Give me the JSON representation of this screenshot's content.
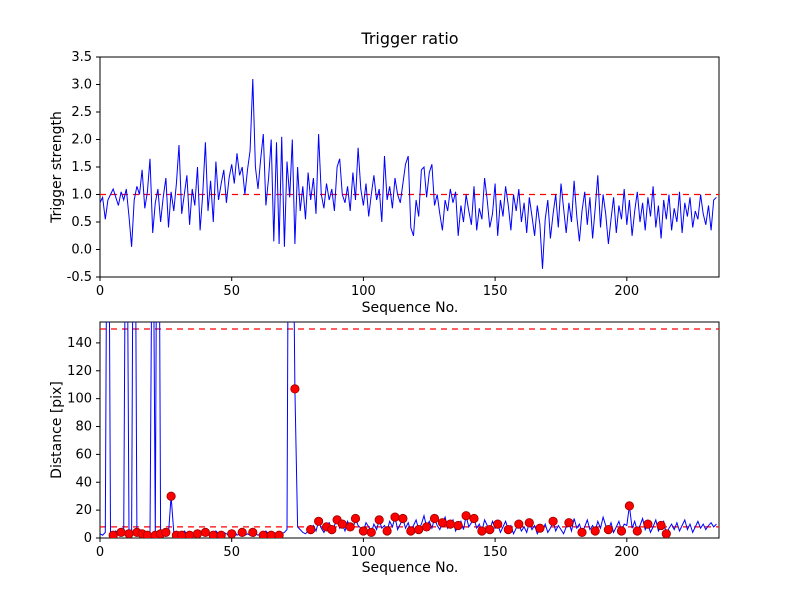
{
  "figure": {
    "background": "#ffffff",
    "line_color": "#0000ff",
    "threshold_color": "#ff0000",
    "marker_face": "#ff0000",
    "marker_edge": "#990000",
    "frame_color": "#000000"
  },
  "chart_data": [
    {
      "type": "line",
      "title": "Trigger ratio",
      "xlabel": "Sequence No.",
      "ylabel": "Trigger strength",
      "xlim": [
        0,
        235
      ],
      "ylim": [
        -0.5,
        3.5
      ],
      "xticks": [
        0,
        50,
        100,
        150,
        200
      ],
      "xtick_labels": [
        "0",
        "50",
        "100",
        "150",
        "200"
      ],
      "yticks": [
        -0.5,
        0.0,
        0.5,
        1.0,
        1.5,
        2.0,
        2.5,
        3.0,
        3.5
      ],
      "ytick_labels": [
        "-0.5",
        "0.0",
        "0.5",
        "1.0",
        "1.5",
        "2.0",
        "2.5",
        "3.0",
        "3.5"
      ],
      "thresholds": [
        1.0
      ],
      "grid": false,
      "legend": "none",
      "series": [
        {
          "values": [
            0.85,
            0.95,
            0.55,
            0.9,
            1.0,
            1.1,
            0.95,
            0.8,
            1.05,
            0.9,
            1.1,
            0.6,
            0.05,
            0.9,
            1.15,
            1.0,
            1.45,
            0.75,
            1.05,
            1.65,
            0.3,
            0.85,
            1.1,
            0.5,
            0.95,
            1.3,
            0.4,
            1.05,
            0.7,
            1.2,
            1.9,
            0.65,
            1.0,
            1.35,
            0.45,
            1.1,
            0.8,
            1.5,
            0.35,
            1.0,
            1.95,
            0.7,
            1.25,
            0.5,
            1.6,
            0.9,
            1.2,
            1.45,
            0.85,
            1.3,
            1.55,
            1.2,
            1.75,
            1.35,
            1.5,
            1.0,
            1.45,
            1.8,
            3.1,
            1.5,
            1.1,
            1.65,
            2.1,
            0.8,
            1.3,
            2.0,
            0.15,
            1.95,
            0.1,
            2.05,
            0.05,
            1.6,
            0.95,
            2.0,
            0.1,
            1.5,
            0.7,
            1.15,
            0.55,
            1.4,
            0.9,
            1.3,
            0.65,
            2.1,
            1.0,
            0.75,
            1.2,
            0.9,
            1.1,
            0.7,
            1.5,
            1.65,
            1.0,
            0.85,
            1.15,
            0.7,
            1.4,
            0.9,
            1.85,
            1.1,
            0.8,
            1.2,
            0.6,
            1.0,
            1.35,
            0.9,
            1.1,
            0.5,
            1.7,
            0.9,
            1.15,
            0.75,
            1.3,
            1.0,
            0.85,
            1.2,
            1.55,
            1.7,
            0.4,
            0.25,
            0.9,
            0.6,
            1.45,
            1.5,
            0.95,
            1.4,
            1.55,
            0.8,
            1.0,
            0.65,
            0.35,
            0.9,
            0.7,
            1.1,
            0.85,
            1.05,
            0.25,
            0.8,
            0.5,
            1.0,
            0.7,
            0.45,
            1.15,
            0.35,
            0.75,
            0.55,
            1.3,
            0.9,
            0.4,
            0.65,
            1.2,
            0.25,
            0.9,
            0.6,
            1.15,
            0.8,
            0.35,
            1.0,
            0.7,
            1.1,
            0.5,
            0.85,
            0.3,
            0.95,
            0.6,
            0.25,
            0.8,
            0.45,
            -0.35,
            0.55,
            0.9,
            0.2,
            0.65,
            1.0,
            0.4,
            1.2,
            0.75,
            0.3,
            0.85,
            0.5,
            1.25,
            0.6,
            0.15,
            0.7,
            1.05,
            0.45,
            0.95,
            0.2,
            0.75,
            1.35,
            0.4,
            1.0,
            0.65,
            0.1,
            0.55,
            0.95,
            0.3,
            0.8,
            0.55,
            1.1,
            0.45,
            0.9,
            0.25,
            0.7,
            1.05,
            0.5,
            0.85,
            0.35,
            0.95,
            0.6,
            1.15,
            0.4,
            0.8,
            0.2,
            0.9,
            0.55,
            1.0,
            0.35,
            0.75,
            0.5,
            1.05,
            0.3,
            0.85,
            0.6,
            0.95,
            0.4,
            0.7,
            0.55,
            1.0,
            0.65,
            0.45,
            0.8,
            0.35,
            0.9,
            0.95
          ]
        }
      ],
      "marker_indices": []
    },
    {
      "type": "line",
      "title": "",
      "xlabel": "Sequence No.",
      "ylabel": "Distance [pix]",
      "xlim": [
        0,
        235
      ],
      "ylim": [
        0,
        155
      ],
      "xticks": [
        0,
        50,
        100,
        150,
        200
      ],
      "xtick_labels": [
        "0",
        "50",
        "100",
        "150",
        "200"
      ],
      "yticks": [
        0,
        20,
        40,
        60,
        80,
        100,
        120,
        140
      ],
      "ytick_labels": [
        "0",
        "20",
        "40",
        "60",
        "80",
        "100",
        "120",
        "140"
      ],
      "thresholds": [
        150,
        8
      ],
      "grid": false,
      "legend": "none",
      "series": [
        {
          "values": [
            3,
            2,
            4,
            400,
            3,
            2,
            5,
            3,
            4,
            2,
            350,
            3,
            2,
            400,
            4,
            2,
            3,
            5,
            2,
            3,
            300,
            2,
            450,
            3,
            2,
            4,
            3,
            30,
            4,
            2,
            3,
            2,
            5,
            3,
            2,
            4,
            2,
            3,
            5,
            2,
            4,
            2,
            3,
            2,
            5,
            3,
            2,
            4,
            3,
            2,
            3,
            5,
            2,
            3,
            4,
            2,
            3,
            2,
            4,
            3,
            2,
            3,
            2,
            5,
            3,
            2,
            4,
            3,
            2,
            3,
            4,
            6,
            480,
            300,
            107,
            8,
            6,
            4,
            3,
            5,
            6,
            9,
            5,
            12,
            7,
            4,
            8,
            11,
            6,
            9,
            13,
            7,
            10,
            5,
            12,
            8,
            6,
            14,
            9,
            7,
            5,
            11,
            8,
            4,
            10,
            6,
            13,
            7,
            9,
            5,
            12,
            8,
            15,
            6,
            10,
            14,
            7,
            11,
            5,
            9,
            13,
            6,
            10,
            16,
            8,
            12,
            7,
            14,
            9,
            6,
            11,
            15,
            7,
            10,
            13,
            5,
            9,
            12,
            6,
            16,
            8,
            11,
            14,
            7,
            10,
            5,
            13,
            9,
            6,
            12,
            7,
            10,
            4,
            8,
            12,
            6,
            9,
            3,
            7,
            10,
            5,
            8,
            4,
            11,
            6,
            9,
            3,
            7,
            5,
            10,
            4,
            7,
            12,
            5,
            9,
            6,
            3,
            8,
            11,
            5,
            14,
            7,
            10,
            4,
            8,
            13,
            6,
            9,
            5,
            12,
            7,
            15,
            9,
            6,
            11,
            4,
            8,
            12,
            5,
            10,
            9,
            23,
            7,
            12,
            5,
            9,
            14,
            6,
            10,
            4,
            8,
            13,
            5,
            9,
            12,
            3,
            7,
            10,
            6,
            11,
            5,
            9,
            13,
            6,
            10,
            4,
            8,
            12,
            7,
            10,
            6,
            9,
            11,
            8,
            10
          ]
        }
      ],
      "marker_indices": [
        5,
        8,
        11,
        14,
        16,
        18,
        21,
        23,
        25,
        27,
        29,
        31,
        34,
        37,
        40,
        43,
        46,
        50,
        54,
        58,
        62,
        65,
        68,
        74,
        80,
        83,
        86,
        88,
        90,
        92,
        95,
        97,
        100,
        103,
        106,
        109,
        112,
        115,
        118,
        121,
        124,
        127,
        130,
        133,
        136,
        139,
        142,
        145,
        148,
        151,
        155,
        159,
        163,
        167,
        172,
        178,
        183,
        188,
        193,
        198,
        201,
        204,
        208,
        213,
        215
      ]
    }
  ]
}
